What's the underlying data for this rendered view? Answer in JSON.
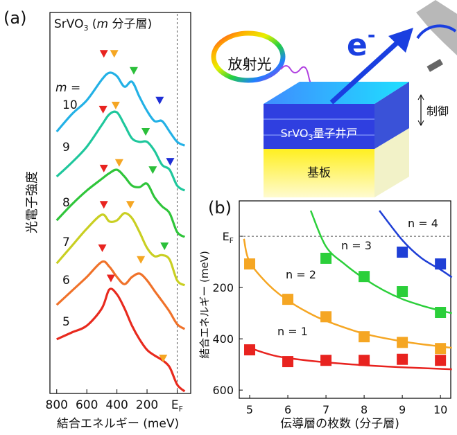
{
  "chart_data": [
    {
      "type": "line",
      "panel": "(a)",
      "title": [
        "SrVO",
        "3",
        " (",
        "m",
        " 分子層)"
      ],
      "xlabel": "結合エネルギー (meV)",
      "ylabel": "光電子強度",
      "legend_title": "m =",
      "xlim": [
        845,
        -90
      ],
      "ylim": [
        0,
        100
      ],
      "xticks": [
        800,
        600,
        400,
        200,
        {
          "value": 0,
          "label": "E",
          "sub": "F"
        }
      ],
      "x": [
        800,
        700,
        600,
        500,
        450,
        400,
        350,
        300,
        250,
        200,
        150,
        100,
        50,
        0,
        -50
      ],
      "series": [
        {
          "name": "5",
          "color": "#e82a1e",
          "values": [
            13.8,
            15.6,
            17.4,
            22.0,
            27.0,
            25.7,
            22.0,
            17.4,
            13.8,
            11.0,
            9.5,
            8.3,
            6.4,
            1.8,
            0
          ]
        },
        {
          "name": "6",
          "color": "#f0722a",
          "values": [
            22.9,
            26.6,
            30.3,
            34.3,
            33.0,
            30.3,
            28.4,
            30.3,
            31.2,
            29.4,
            26.6,
            23.9,
            21.1,
            17.8,
            16.5
          ]
        },
        {
          "name": "7",
          "color": "#c9cf22",
          "values": [
            33.9,
            38.5,
            43.1,
            46.8,
            45.0,
            45.3,
            47.2,
            45.9,
            42.2,
            38.0,
            35.8,
            36.1,
            34.9,
            29.4,
            28.1
          ]
        },
        {
          "name": "8",
          "color": "#2fc53a",
          "values": [
            45.3,
            49.5,
            53.2,
            56.3,
            57.8,
            58.7,
            56.9,
            54.5,
            54.1,
            55.0,
            51.4,
            49.0,
            47.2,
            42.2,
            40.9
          ]
        },
        {
          "name": "9",
          "color": "#1fc79c",
          "values": [
            56.9,
            60.6,
            64.8,
            70.6,
            73.4,
            73.9,
            70.6,
            67.0,
            66.1,
            66.1,
            63.7,
            60.0,
            58.7,
            54.5,
            53.2
          ]
        },
        {
          "name": "10",
          "color": "#23b1e6",
          "values": [
            68.8,
            73.4,
            77.1,
            82.6,
            84.4,
            83.5,
            80.7,
            82.0,
            78.0,
            74.3,
            71.6,
            71.6,
            68.8,
            66.1,
            65.1
          ]
        }
      ],
      "markers": [
        {
          "x": 440,
          "y": 30,
          "color": "#e8231f"
        },
        {
          "x": 93,
          "y": 8.8,
          "color": "#f5a623"
        },
        {
          "x": 497,
          "y": 38,
          "color": "#e8231f"
        },
        {
          "x": 241,
          "y": 34.9,
          "color": "#f5a623"
        },
        {
          "x": 487,
          "y": 49.5,
          "color": "#e8231f"
        },
        {
          "x": 311,
          "y": 49.5,
          "color": "#f5a623"
        },
        {
          "x": 84,
          "y": 38.5,
          "color": "#2bbf3a"
        },
        {
          "x": 487,
          "y": 59.1,
          "color": "#e8231f"
        },
        {
          "x": 385,
          "y": 60.6,
          "color": "#f5a623"
        },
        {
          "x": 162,
          "y": 58.7,
          "color": "#2bbf3a"
        },
        {
          "x": 492,
          "y": 74.7,
          "color": "#e8231f"
        },
        {
          "x": 408,
          "y": 75.8,
          "color": "#f5a623"
        },
        {
          "x": 209,
          "y": 68.8,
          "color": "#2bbf3a"
        },
        {
          "x": 46,
          "y": 60.9,
          "color": "#1f2fd6"
        },
        {
          "x": 487,
          "y": 89.5,
          "color": "#e8231f"
        },
        {
          "x": 418,
          "y": 89.5,
          "color": "#f5a623"
        },
        {
          "x": 288,
          "y": 85.0,
          "color": "#2bbf3a"
        },
        {
          "x": 116,
          "y": 77.1,
          "color": "#1f2fd6"
        }
      ]
    },
    {
      "type": "scatter",
      "panel": "(b)",
      "xlabel": "伝導層の枚数 (分子層)",
      "ylabel": "結合エネルギー (meV)",
      "xlim": [
        4.727,
        10.27
      ],
      "ylim": [
        632,
        -138
      ],
      "xticks": [
        5,
        6,
        7,
        8,
        9,
        10
      ],
      "yticks": [
        {
          "value": 0,
          "label": "E",
          "sub": "F"
        },
        200,
        400,
        600
      ],
      "series": [
        {
          "name": "n = 1",
          "color": "#e8231f",
          "x": [
            5,
            6,
            7,
            8,
            9,
            10
          ],
          "values": [
            443,
            489,
            484,
            484,
            480,
            484
          ],
          "fit_x": [
            4.9,
            5.5,
            6,
            7,
            8,
            9,
            10.3
          ],
          "fit_values": [
            430,
            460,
            475,
            492,
            503,
            511,
            519
          ]
        },
        {
          "name": "n = 2",
          "color": "#f5a623",
          "x": [
            5,
            6,
            7,
            8,
            9,
            10
          ],
          "values": [
            108,
            246,
            314,
            392,
            414,
            438
          ],
          "fit_x": [
            4.85,
            5,
            5.5,
            6,
            6.5,
            7,
            8,
            9,
            10,
            10.3
          ],
          "fit_values": [
            10,
            100,
            190,
            250,
            295,
            330,
            380,
            410,
            430,
            435
          ]
        },
        {
          "name": "n = 3",
          "color": "#2bcf3a",
          "x": [
            7,
            8,
            9,
            10
          ],
          "values": [
            86,
            157,
            216,
            297
          ],
          "fit_x": [
            6.6,
            7,
            7.5,
            8,
            8.5,
            9,
            9.5,
            10,
            10.3
          ],
          "fit_values": [
            -100,
            40,
            110,
            165,
            210,
            245,
            270,
            290,
            300
          ]
        },
        {
          "name": "n = 4",
          "color": "#1f3fd6",
          "x": [
            9,
            10
          ],
          "values": [
            62,
            108
          ],
          "fit_x": [
            8.4,
            9,
            9.5,
            10,
            10.3
          ],
          "fit_values": [
            -100,
            15,
            85,
            130,
            160
          ]
        }
      ]
    }
  ],
  "diagram": {
    "light": "放射光",
    "electron": "e",
    "electron_sup": "-",
    "control": "制御",
    "well": [
      "SrVO",
      "3",
      "量子井戸"
    ],
    "substrate": "基板"
  }
}
